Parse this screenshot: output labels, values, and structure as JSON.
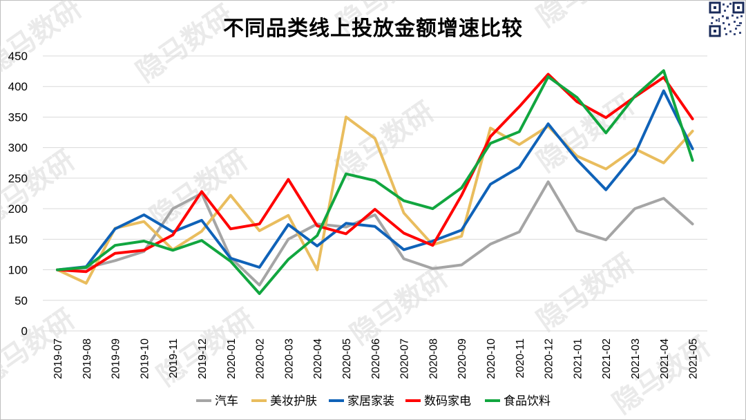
{
  "chart_data": {
    "type": "line",
    "title": "不同品类线上投放金额增速比较",
    "ylim": [
      0,
      450
    ],
    "yticks": [
      0,
      50,
      100,
      150,
      200,
      250,
      300,
      350,
      400,
      450
    ],
    "grid": true,
    "legend_position": "bottom",
    "watermark": "隐马数研",
    "categories": [
      "2019-07",
      "2019-08",
      "2019-09",
      "2019-10",
      "2019-11",
      "2019-12",
      "2020-01",
      "2020-02",
      "2020-03",
      "2020-04",
      "2020-05",
      "2020-06",
      "2020-07",
      "2020-08",
      "2020-09",
      "2020-10",
      "2020-11",
      "2020-12",
      "2021-01",
      "2021-02",
      "2021-03",
      "2021-04",
      "2021-05"
    ],
    "series": [
      {
        "name": "汽车",
        "color": "#a5a5a5",
        "values": [
          100,
          103,
          115,
          130,
          200,
          225,
          120,
          75,
          150,
          175,
          170,
          190,
          118,
          102,
          108,
          142,
          162,
          244,
          164,
          149,
          200,
          217,
          175
        ]
      },
      {
        "name": "美妆护肤",
        "color": "#e9bd5e",
        "values": [
          100,
          78,
          168,
          179,
          133,
          163,
          222,
          164,
          189,
          100,
          350,
          315,
          193,
          141,
          155,
          332,
          305,
          335,
          286,
          265,
          298,
          275,
          327
        ]
      },
      {
        "name": "家居家装",
        "color": "#0f62b8",
        "values": [
          100,
          105,
          167,
          190,
          162,
          181,
          119,
          104,
          174,
          139,
          176,
          171,
          133,
          147,
          165,
          240,
          268,
          339,
          280,
          231,
          289,
          393,
          298
        ]
      },
      {
        "name": "数码家电",
        "color": "#ff0000",
        "values": [
          100,
          97,
          127,
          132,
          157,
          228,
          167,
          175,
          248,
          172,
          159,
          199,
          160,
          140,
          222,
          318,
          367,
          420,
          375,
          349,
          383,
          415,
          347
        ]
      },
      {
        "name": "食品饮料",
        "color": "#11a63f",
        "values": [
          100,
          104,
          140,
          147,
          132,
          148,
          114,
          61,
          117,
          156,
          257,
          246,
          213,
          200,
          234,
          307,
          326,
          416,
          382,
          324,
          384,
          426,
          279
        ]
      }
    ]
  }
}
